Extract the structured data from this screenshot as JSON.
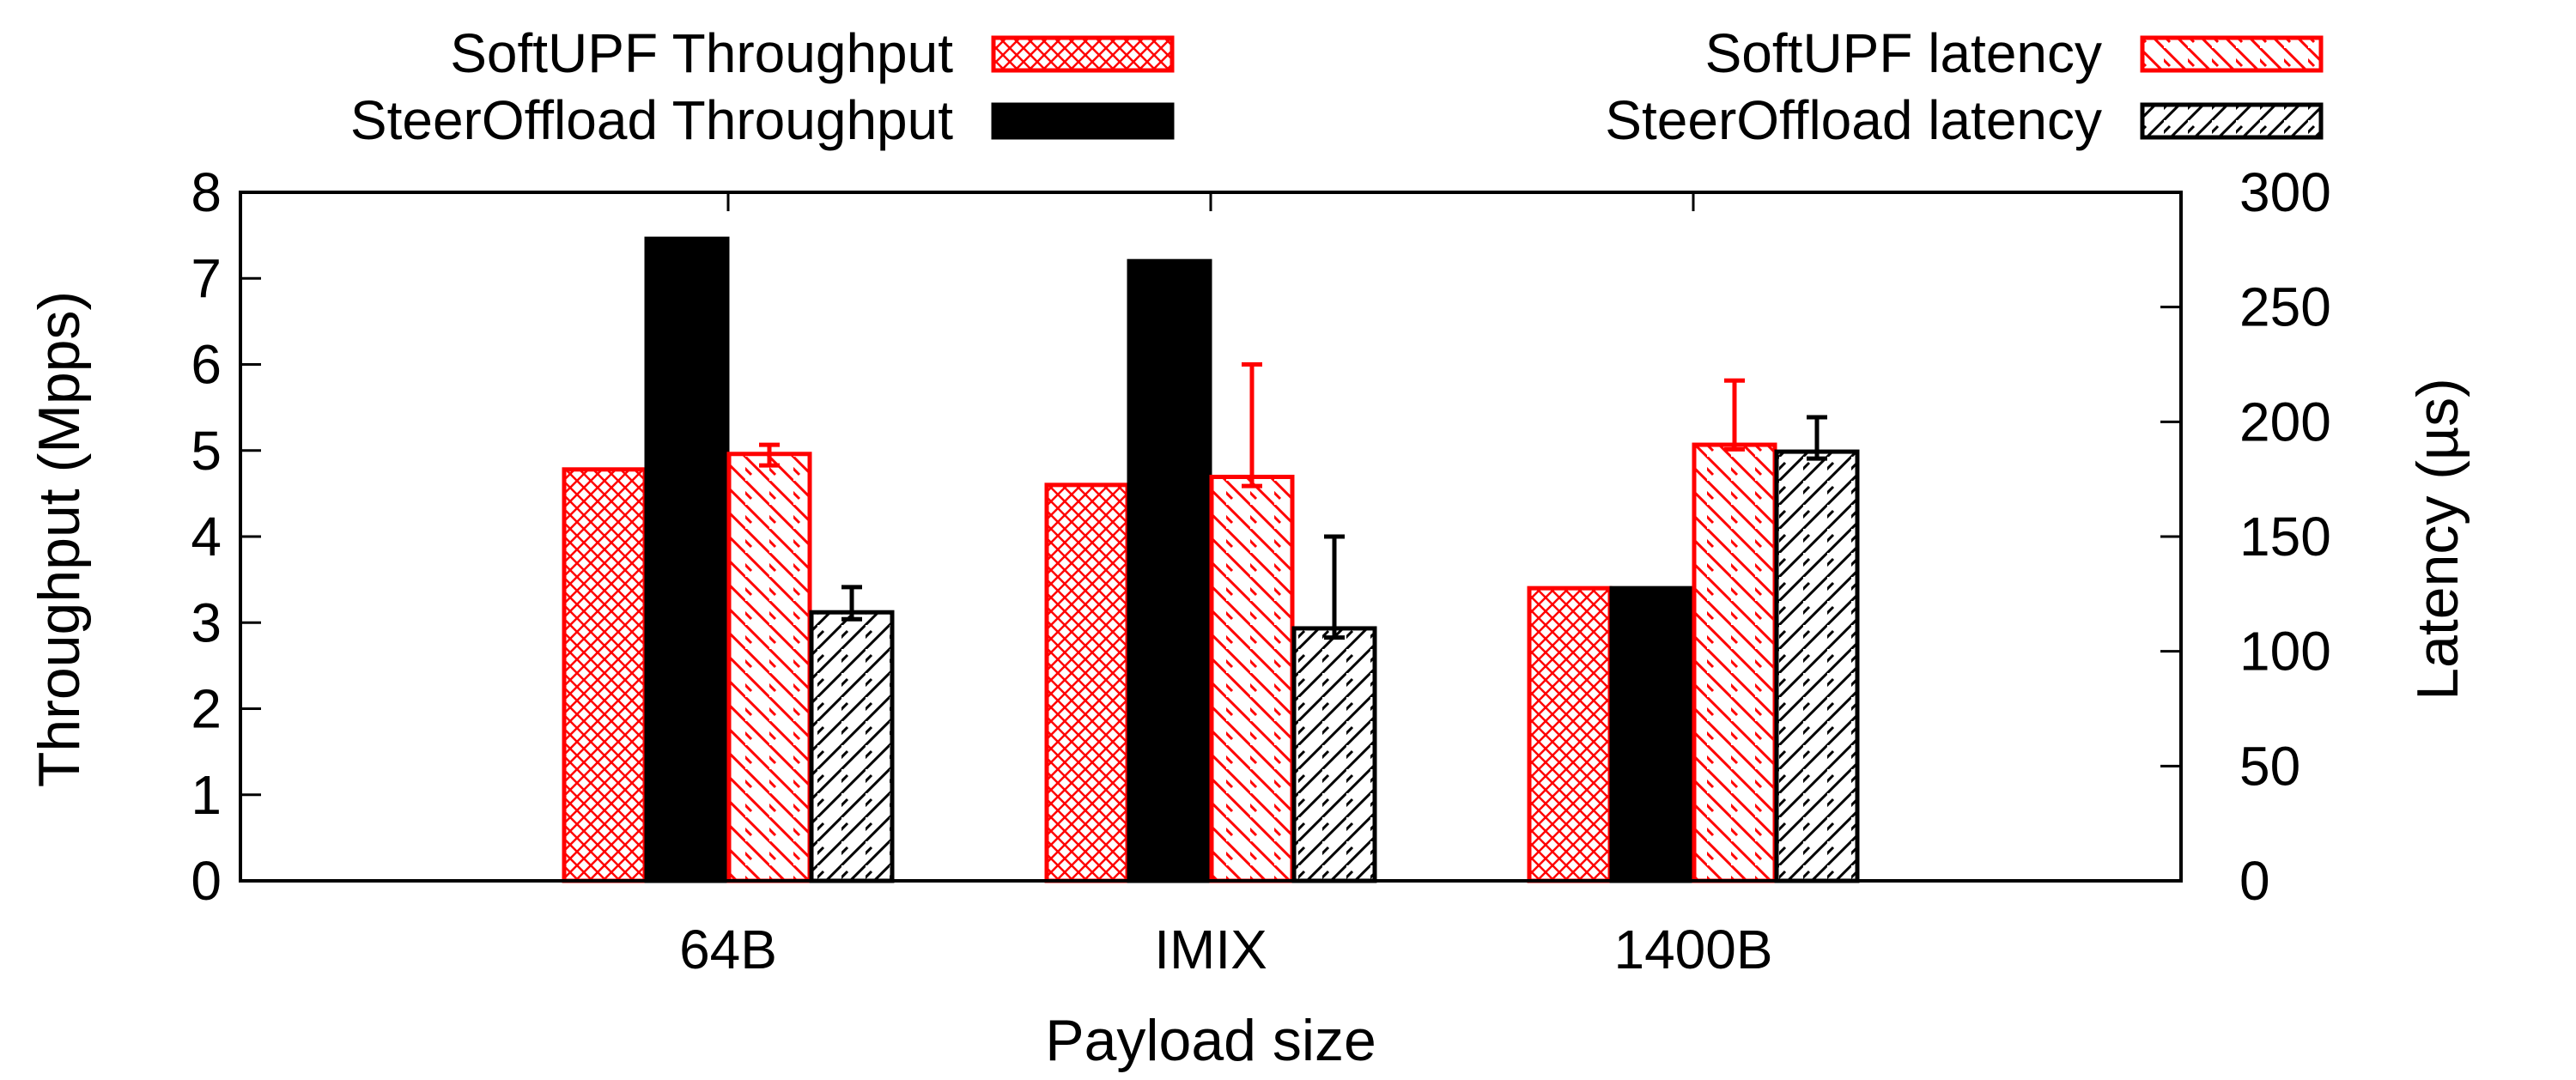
{
  "chart_data": {
    "type": "bar",
    "xlabel": "Payload size",
    "ylabel_left": "Throughput (Mpps)",
    "ylabel_right": "Latency (µs)",
    "categories": [
      "64B",
      "IMIX",
      "1400B"
    ],
    "ylim_left": [
      0,
      8
    ],
    "yticks_left": [
      0,
      1,
      2,
      3,
      4,
      5,
      6,
      7,
      8
    ],
    "ylim_right": [
      0,
      300
    ],
    "yticks_right": [
      0,
      50,
      100,
      150,
      200,
      250,
      300
    ],
    "legend_placement": "top, above plot",
    "series": [
      {
        "name": "SoftUPF Throughput",
        "axis": "left",
        "color": "#ff0000",
        "pattern": "crosshatch",
        "values": [
          4.78,
          4.6,
          3.4
        ]
      },
      {
        "name": "SteerOffload Throughput",
        "axis": "left",
        "color": "#000000",
        "pattern": "solid",
        "values": [
          7.46,
          7.2,
          3.4
        ]
      },
      {
        "name": "SoftUPF latency",
        "axis": "right",
        "color": "#ff0000",
        "pattern": "backslash",
        "values": [
          186,
          176,
          190
        ],
        "error_low": [
          181,
          172,
          188
        ],
        "error_high": [
          190,
          225,
          218
        ]
      },
      {
        "name": "SteerOffload latency",
        "axis": "right",
        "color": "#000000",
        "pattern": "slash",
        "values": [
          117,
          110,
          187
        ],
        "error_low": [
          114,
          106,
          184
        ],
        "error_high": [
          128,
          150,
          202
        ]
      }
    ]
  }
}
